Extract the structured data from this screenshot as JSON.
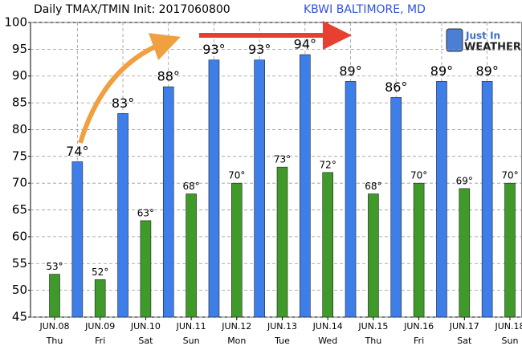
{
  "chart_data": {
    "type": "bar",
    "title": "Daily TMAX/TMIN Init: 2017060800",
    "subtitle": "KBWI BALTIMORE, MD",
    "logo": {
      "line1": "Just In",
      "line2": "WEATHER"
    },
    "categories": [
      "JUN.08",
      "JUN.09",
      "JUN.10",
      "JUN.11",
      "JUN.12",
      "JUN.13",
      "JUN.14",
      "JUN.15",
      "JUN.16",
      "JUN.17",
      "JUN.18"
    ],
    "weekdays": [
      "Thu",
      "Fri",
      "Sat",
      "Sun",
      "Mon",
      "Tue",
      "Wed",
      "Thu",
      "Fri",
      "Sat",
      "Sun"
    ],
    "series": [
      {
        "color": "#3f9a2a",
        "values": [
          53,
          52,
          63,
          68,
          70,
          73,
          72,
          68,
          70,
          69,
          70
        ],
        "value_labels": [
          "53°",
          "52°",
          "63°",
          "68°",
          "70°",
          "73°",
          "72°",
          "68°",
          "70°",
          "69°",
          "70°"
        ]
      },
      {
        "color": "#3d7ee8",
        "values": [
          74,
          83,
          88,
          93,
          93,
          94,
          89,
          86,
          89,
          89,
          null
        ],
        "value_labels": [
          "74°",
          "83°",
          "88°",
          "93°",
          "93°",
          "94°",
          "89°",
          "86°",
          "89°",
          "89°",
          null
        ]
      }
    ],
    "ylim": [
      45,
      100
    ],
    "yticks": [
      45,
      50,
      55,
      60,
      65,
      70,
      75,
      80,
      85,
      90,
      95,
      100
    ],
    "grid": true
  }
}
